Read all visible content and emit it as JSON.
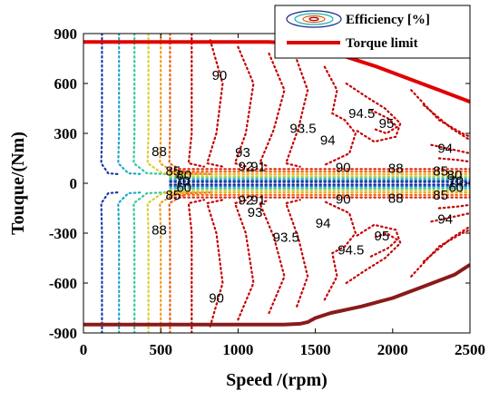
{
  "chart_data": {
    "type": "contour",
    "title": "",
    "xlabel": "Speed /(rpm)",
    "ylabel": "Touque/(Nm)",
    "xlim": [
      0,
      2500
    ],
    "ylim": [
      -900,
      900
    ],
    "x_ticks": [
      "0",
      "500",
      "1000",
      "1500",
      "2000",
      "2500"
    ],
    "y_ticks": [
      "900",
      "600",
      "300",
      "0",
      "-300",
      "-600",
      "-900"
    ],
    "legend": {
      "placement": "top-right",
      "entries": [
        {
          "label": "Efficiency [%]",
          "style": "contour"
        },
        {
          "label": "Torque limit",
          "style": "line",
          "color": "#e00000"
        }
      ]
    },
    "torque_limit": {
      "color": "#e00000",
      "positive": {
        "x": [
          0,
          1200,
          1300,
          1500,
          1700,
          1900,
          2100,
          2300,
          2500
        ],
        "y": [
          850,
          850,
          845,
          810,
          760,
          700,
          630,
          560,
          490
        ]
      },
      "negative": {
        "x": [
          0,
          1300,
          1400,
          1450,
          1500,
          1600,
          1800,
          2000,
          2200,
          2400,
          2500
        ],
        "y": [
          -850,
          -850,
          -845,
          -835,
          -810,
          -780,
          -740,
          -690,
          -620,
          -550,
          -490
        ]
      }
    },
    "contour_labels": [
      {
        "text": "88",
        "x": 490,
        "y": 190
      },
      {
        "text": "90",
        "x": 880,
        "y": 650
      },
      {
        "text": "93.5",
        "x": 1420,
        "y": 330
      },
      {
        "text": "94",
        "x": 1580,
        "y": 260
      },
      {
        "text": "94.5",
        "x": 1800,
        "y": 420
      },
      {
        "text": "95",
        "x": 1960,
        "y": 360
      },
      {
        "text": "94",
        "x": 2340,
        "y": 210
      },
      {
        "text": "93",
        "x": 1030,
        "y": 185
      },
      {
        "text": "92",
        "x": 1050,
        "y": 100
      },
      {
        "text": "91",
        "x": 1130,
        "y": 100
      },
      {
        "text": "90",
        "x": 1680,
        "y": 95
      },
      {
        "text": "88",
        "x": 2020,
        "y": 90
      },
      {
        "text": "85",
        "x": 580,
        "y": 75
      },
      {
        "text": "80",
        "x": 650,
        "y": 50
      },
      {
        "text": "70",
        "x": 640,
        "y": 15
      },
      {
        "text": "60",
        "x": 650,
        "y": -25
      },
      {
        "text": "85",
        "x": 580,
        "y": -70
      },
      {
        "text": "85",
        "x": 2310,
        "y": 75
      },
      {
        "text": "80",
        "x": 2400,
        "y": 50
      },
      {
        "text": "70",
        "x": 2410,
        "y": 15
      },
      {
        "text": "60",
        "x": 2410,
        "y": -25
      },
      {
        "text": "85",
        "x": 2310,
        "y": -70
      },
      {
        "text": "92",
        "x": 1050,
        "y": -100
      },
      {
        "text": "91",
        "x": 1130,
        "y": -100
      },
      {
        "text": "93",
        "x": 1110,
        "y": -175
      },
      {
        "text": "90",
        "x": 1680,
        "y": -95
      },
      {
        "text": "88",
        "x": 2020,
        "y": -90
      },
      {
        "text": "94",
        "x": 2340,
        "y": -215
      },
      {
        "text": "88",
        "x": 490,
        "y": -280
      },
      {
        "text": "93.5",
        "x": 1310,
        "y": -325
      },
      {
        "text": "94",
        "x": 1550,
        "y": -240
      },
      {
        "text": "95",
        "x": 1930,
        "y": -315
      },
      {
        "text": "94.5",
        "x": 1730,
        "y": -400
      },
      {
        "text": "90",
        "x": 860,
        "y": -690
      }
    ]
  }
}
